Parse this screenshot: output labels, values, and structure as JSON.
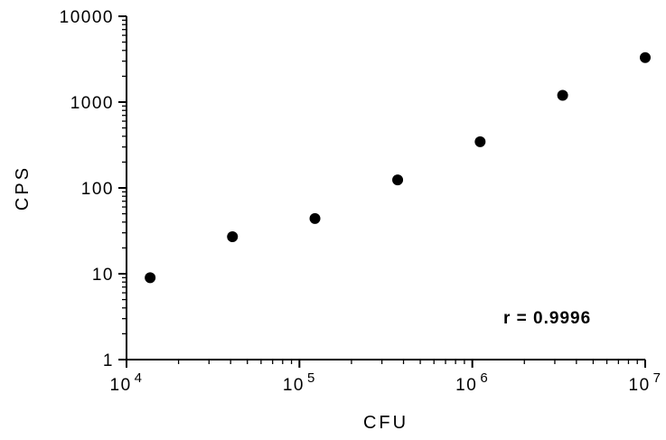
{
  "chart_data": {
    "type": "scatter",
    "xlabel": "CFU",
    "ylabel": "CPS",
    "x_scale": "log",
    "y_scale": "log",
    "xlim": [
      10000,
      10000000
    ],
    "ylim": [
      1,
      10000
    ],
    "x_ticks": [
      {
        "value": 10000,
        "base": "10",
        "exp": "4"
      },
      {
        "value": 100000,
        "base": "10",
        "exp": "5"
      },
      {
        "value": 1000000,
        "base": "10",
        "exp": "6"
      },
      {
        "value": 10000000,
        "base": "10",
        "exp": "7"
      }
    ],
    "y_ticks": [
      {
        "value": 1,
        "label": "1"
      },
      {
        "value": 10,
        "label": "10"
      },
      {
        "value": 100,
        "label": "100"
      },
      {
        "value": 1000,
        "label": "1000"
      },
      {
        "value": 10000,
        "label": "10000"
      }
    ],
    "grid": false,
    "legend": "none",
    "marker_color": "#000000",
    "points": [
      {
        "x": 13700,
        "y": 9
      },
      {
        "x": 41000,
        "y": 27
      },
      {
        "x": 123000,
        "y": 44
      },
      {
        "x": 370000,
        "y": 124
      },
      {
        "x": 1110000,
        "y": 345
      },
      {
        "x": 3330000,
        "y": 1200
      },
      {
        "x": 10000000,
        "y": 3300
      }
    ],
    "annotation": "r = 0.9996"
  }
}
